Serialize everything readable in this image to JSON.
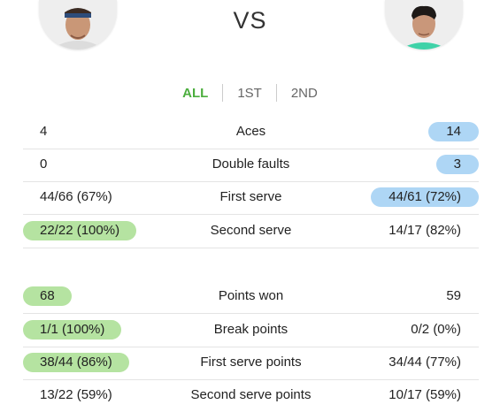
{
  "header": {
    "vs_label": "VS",
    "player_left_avatar": "player-photo-left",
    "player_right_avatar": "player-photo-right"
  },
  "tabs": [
    {
      "label": "ALL",
      "active": true
    },
    {
      "label": "1ST",
      "active": false
    },
    {
      "label": "2ND",
      "active": false
    }
  ],
  "colors": {
    "accent_green": "#4cae3e",
    "left_highlight": "#b5e3a1",
    "right_highlight": "#aed6f5"
  },
  "serve_stats": [
    {
      "label": "Aces",
      "left": "4",
      "right": "14",
      "highlight": "right"
    },
    {
      "label": "Double faults",
      "left": "0",
      "right": "3",
      "highlight": "right"
    },
    {
      "label": "First serve",
      "left": "44/66 (67%)",
      "right": "44/61 (72%)",
      "highlight": "right"
    },
    {
      "label": "Second serve",
      "left": "22/22 (100%)",
      "right": "14/17 (82%)",
      "highlight": "left"
    }
  ],
  "point_stats": [
    {
      "label": "Points won",
      "left": "68",
      "right": "59",
      "highlight": "left"
    },
    {
      "label": "Break points",
      "left": "1/1 (100%)",
      "right": "0/2 (0%)",
      "highlight": "left"
    },
    {
      "label": "First serve points",
      "left": "38/44 (86%)",
      "right": "34/44 (77%)",
      "highlight": "left"
    },
    {
      "label": "Second serve points",
      "left": "13/22 (59%)",
      "right": "10/17 (59%)",
      "highlight": "none"
    }
  ]
}
